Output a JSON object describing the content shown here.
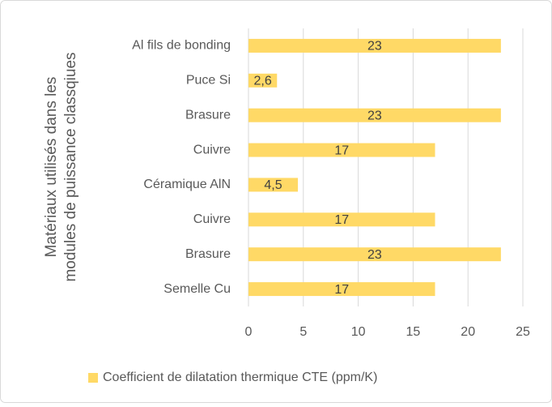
{
  "chart_data": {
    "type": "bar",
    "orientation": "horizontal",
    "y_label": [
      "Matériaux utilisés dans les",
      "modules de puissance classqiues"
    ],
    "categories": [
      "Al fils de bonding",
      "Puce Si",
      "Brasure",
      "Cuivre",
      "Céramique AlN",
      "Cuivre",
      "Brasure",
      "Semelle Cu"
    ],
    "series": [
      {
        "name": "Coefficient de dilatation thermique CTE (ppm/K)",
        "color": "#ffd966",
        "values": [
          23,
          2.6,
          23,
          17,
          4.5,
          17,
          23,
          17
        ],
        "value_labels": [
          "23",
          "2,6",
          "23",
          "17",
          "4,5",
          "17",
          "23",
          "17"
        ]
      }
    ],
    "xlim": [
      0,
      25
    ],
    "xticks": [
      0,
      5,
      10,
      15,
      20,
      25
    ],
    "grid": true,
    "legend": "bottom"
  }
}
